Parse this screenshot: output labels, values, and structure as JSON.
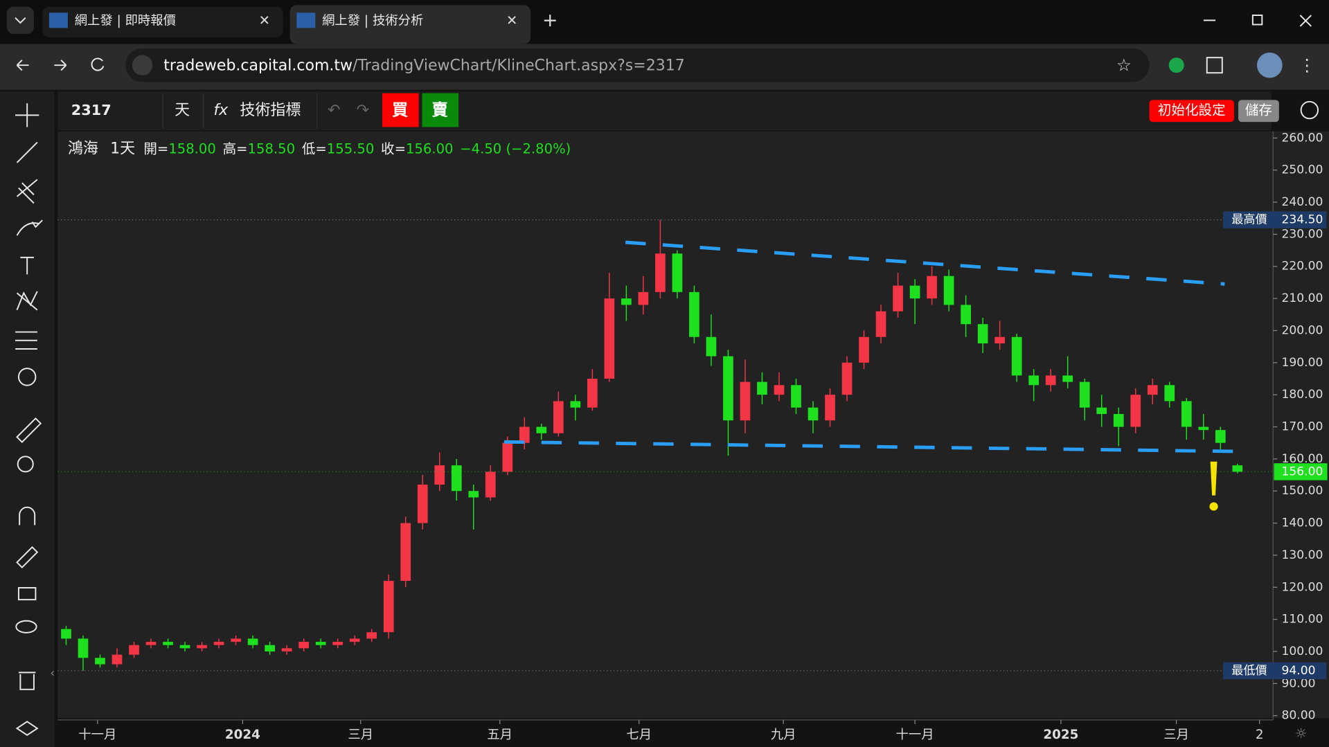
{
  "browser": {
    "tabs": [
      "網上發 | 即時報價",
      "網上發 | 技術分析"
    ],
    "url_domain": "tradeweb.capital.com.tw",
    "url_path": "/TradingViewChart/KlineChart.aspx?s=2317"
  },
  "toolbar": {
    "symbol": "2317",
    "interval": "天",
    "indicators": "技術指標",
    "buy": "買",
    "sell": "賣",
    "reset": "初始化設定",
    "save": "儲存"
  },
  "legend": {
    "name": "鴻海",
    "interval": "1天",
    "open_label": "開=",
    "open": "158.00",
    "high_label": "高=",
    "high": "158.50",
    "low_label": "低=",
    "low": "155.50",
    "close_label": "收=",
    "close": "156.00",
    "change": "−4.50 (−2.80%)"
  },
  "chart_data": {
    "type": "candlestick",
    "name": "鴻海",
    "up_color": "#f23645",
    "down_color": "#1ee01e",
    "open": [
      107,
      104,
      98,
      96,
      99,
      102,
      103,
      102,
      101,
      102,
      103,
      104,
      102,
      100,
      101,
      103,
      102,
      103,
      104,
      106,
      122,
      140,
      152,
      158,
      150,
      148,
      156,
      165,
      170,
      168,
      178,
      176,
      185,
      210,
      208,
      212,
      224,
      212,
      198,
      192,
      172,
      184,
      180,
      183,
      176,
      172,
      180,
      190,
      198,
      206,
      214,
      210,
      217,
      208,
      202,
      196,
      198,
      186,
      183,
      186,
      184,
      176,
      174,
      170,
      180,
      183,
      178,
      170,
      169,
      158
    ],
    "high": [
      108,
      105,
      99,
      101,
      103,
      104,
      104,
      103,
      103,
      104,
      105,
      105,
      103,
      102,
      104,
      104,
      104,
      105,
      107,
      124,
      142,
      155,
      162,
      160,
      152,
      158,
      167,
      173,
      171,
      181,
      180,
      188,
      218,
      214,
      217,
      234.5,
      225,
      214,
      205,
      194,
      191,
      187,
      187,
      185,
      178,
      182,
      192,
      200,
      208,
      218,
      216,
      220,
      219,
      211,
      204,
      203,
      199,
      188,
      188,
      192,
      185,
      180,
      176,
      182,
      185,
      184,
      179,
      174,
      170,
      158.5
    ],
    "low": [
      102,
      94,
      95,
      95,
      98,
      101,
      101,
      100,
      100,
      101,
      102,
      101,
      99,
      99,
      100,
      101,
      101,
      102,
      103,
      104,
      120,
      138,
      150,
      147,
      138,
      147,
      155,
      163,
      166,
      167,
      172,
      175,
      184,
      203,
      205,
      210,
      210,
      196,
      189,
      161,
      168,
      177,
      178,
      174,
      168,
      170,
      178,
      188,
      196,
      204,
      202,
      208,
      206,
      198,
      193,
      194,
      184,
      178,
      181,
      182,
      172,
      170,
      164,
      168,
      177,
      176,
      166,
      166,
      163,
      155.5
    ],
    "close": [
      104,
      98,
      96,
      99,
      102,
      103,
      102,
      101,
      102,
      103,
      104,
      102,
      100,
      101,
      103,
      102,
      103,
      104,
      106,
      122,
      140,
      152,
      158,
      150,
      148,
      156,
      165,
      170,
      168,
      178,
      176,
      185,
      210,
      208,
      212,
      224,
      212,
      198,
      192,
      172,
      184,
      180,
      183,
      176,
      172,
      180,
      190,
      198,
      206,
      214,
      210,
      217,
      208,
      202,
      196,
      198,
      186,
      183,
      186,
      184,
      176,
      174,
      170,
      180,
      183,
      178,
      170,
      169,
      165,
      156
    ],
    "ylim": [
      79.2,
      262.1
    ],
    "yticks": [
      {
        "value": 80,
        "label": "80.00"
      },
      {
        "value": 90,
        "label": "90.00"
      },
      {
        "value": 100,
        "label": "100.00"
      },
      {
        "value": 110,
        "label": "110.00"
      },
      {
        "value": 120,
        "label": "120.00"
      },
      {
        "value": 130,
        "label": "130.00"
      },
      {
        "value": 140,
        "label": "140.00"
      },
      {
        "value": 150,
        "label": "150.00"
      },
      {
        "value": 160,
        "label": "160.00"
      },
      {
        "value": 170,
        "label": "170.00"
      },
      {
        "value": 180,
        "label": "180.00"
      },
      {
        "value": 190,
        "label": "190.00"
      },
      {
        "value": 200,
        "label": "200.00"
      },
      {
        "value": 210,
        "label": "210.00"
      },
      {
        "value": 220,
        "label": "220.00"
      },
      {
        "value": 230,
        "label": "230.00"
      },
      {
        "value": 240,
        "label": "240.00"
      },
      {
        "value": 250,
        "label": "250.00"
      },
      {
        "value": 260,
        "label": "260.00"
      }
    ],
    "xticks": [
      {
        "value": 1.85,
        "label": "十一月"
      },
      {
        "value": 10.4,
        "label": "2024"
      },
      {
        "value": 17.35,
        "label": "三月"
      },
      {
        "value": 25.55,
        "label": "五月"
      },
      {
        "value": 33.75,
        "label": "七月"
      },
      {
        "value": 42.25,
        "label": "九月"
      },
      {
        "value": 50,
        "label": "十一月"
      },
      {
        "value": 58.6,
        "label": "2025"
      },
      {
        "value": 65.4,
        "label": "三月"
      },
      {
        "value": 70.3,
        "label": "2"
      }
    ],
    "price_markers": [
      {
        "label": "最高價",
        "value": 234.5,
        "value_label": "234.50"
      },
      {
        "label": "最低價",
        "value": 94,
        "value_label": "94.00"
      }
    ],
    "last_price": {
      "value": 156,
      "label": "156.00"
    },
    "trendlines": [
      {
        "x": [
          32.95,
          68.25
        ],
        "y": [
          227.5,
          214.5
        ],
        "color": "#2a9df4"
      },
      {
        "x": [
          25.8,
          69.5
        ],
        "y": [
          165.3,
          162.3
        ],
        "color": "#2a9df4"
      }
    ]
  }
}
